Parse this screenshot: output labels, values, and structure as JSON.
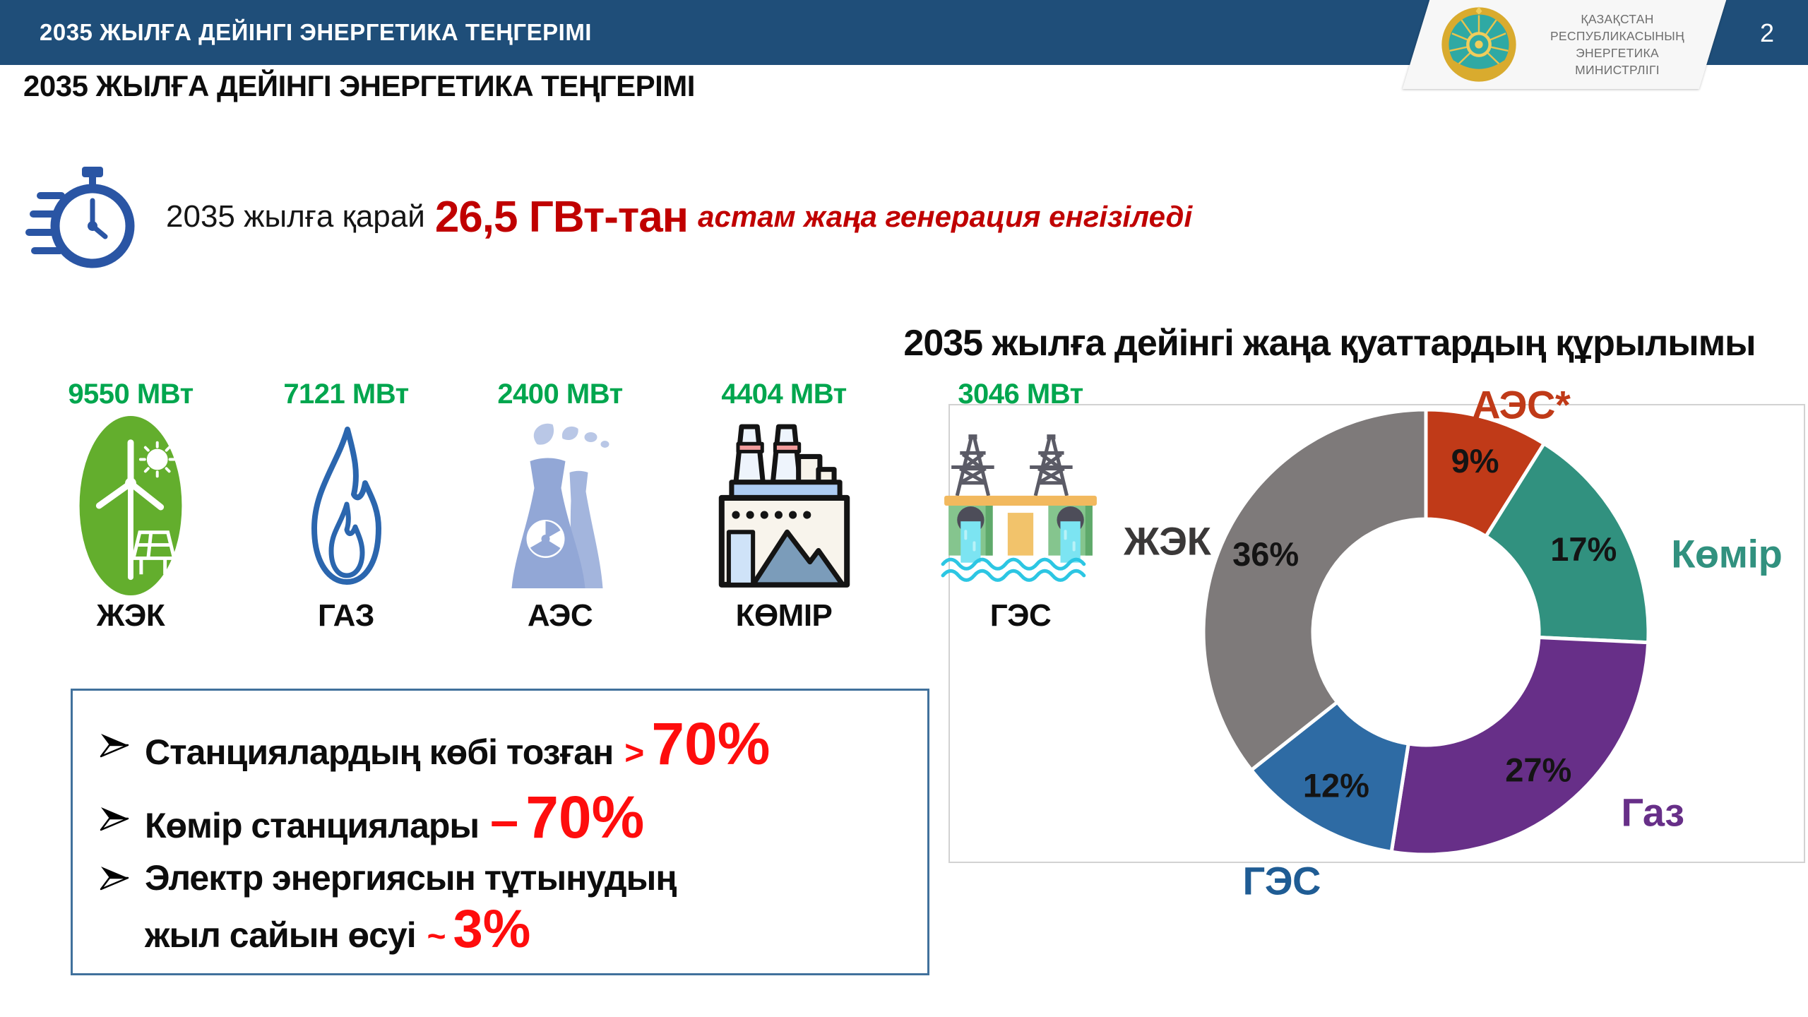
{
  "header": {
    "bar_title": "2035 ЖЫЛҒА ДЕЙІНГІ ЭНЕРГЕТИКА ТЕҢГЕРІМІ",
    "page_number": "2",
    "ministry": {
      "name_lines": [
        "ҚАЗАҚСТАН",
        "РЕСПУБЛИКАСЫНЫҢ",
        "ЭНЕРГЕТИКА",
        "МИНИСТРЛІГІ"
      ],
      "emblem_icon": "kazakhstan-coat-of-arms"
    }
  },
  "main_title": "2035 ЖЫЛҒА ДЕЙІНГІ ЭНЕРГЕТИКА ТЕҢГЕРІМІ",
  "headline": {
    "icon": "stopwatch-icon",
    "prefix": "2035 жылға қарай",
    "highlight": "26,5 ГВт-тан",
    "suffix": "астам жаңа генерация енгізіледі"
  },
  "capacities": [
    {
      "value": "9550 МВт",
      "label": "ЖЭК",
      "icon": "renewables-icon"
    },
    {
      "value": "7121 МВт",
      "label": "ГАЗ",
      "icon": "gas-flame-icon"
    },
    {
      "value": "2400 МВт",
      "label": "АЭС",
      "icon": "nuclear-plant-icon"
    },
    {
      "value": "4404 МВт",
      "label": "КӨМІР",
      "icon": "coal-plant-icon"
    },
    {
      "value": "3046 МВт",
      "label": "ГЭС",
      "icon": "hydro-plant-icon"
    }
  ],
  "chart_data": {
    "type": "pie",
    "subtype": "donut",
    "title": "2035 жылға дейінгі жаңа қуаттардың құрылымы",
    "unit": "%",
    "hole_ratio": 0.51,
    "start_angle": "12-oclock",
    "direction": "clockwise",
    "legend_position": "around-chart",
    "segments": [
      {
        "label": "АЭС*",
        "value": 9,
        "color": "#c03a18"
      },
      {
        "label": "Көмір",
        "value": 17,
        "color": "#31917f"
      },
      {
        "label": "Газ",
        "value": 27,
        "color": "#672f88"
      },
      {
        "label": "ГЭС",
        "value": 12,
        "color": "#2e6ba4",
        "label_color": "#1f5c94"
      },
      {
        "label": "ЖЭК",
        "value": 36,
        "color": "#7e7a7a",
        "label_color": "#3a3838"
      }
    ]
  },
  "bullets": [
    {
      "text": "Станциялардың көбі тозған",
      "value_prefix": ">",
      "value": "70%"
    },
    {
      "text": "Көмір станциялары",
      "value_prefix": "–",
      "value": "70%"
    },
    {
      "text": "Электр энергиясын тұтынудың",
      "text_line2": "жыл сайын өсуі",
      "value_prefix": "~",
      "value": "3%"
    }
  ],
  "colors": {
    "header_bg": "#1f4e79",
    "value_green": "#00a64e",
    "accent_dark_red": "#c00000",
    "accent_red": "#fe0d0d",
    "panel_border": "#d2d2d2",
    "box_border": "#41719c"
  }
}
